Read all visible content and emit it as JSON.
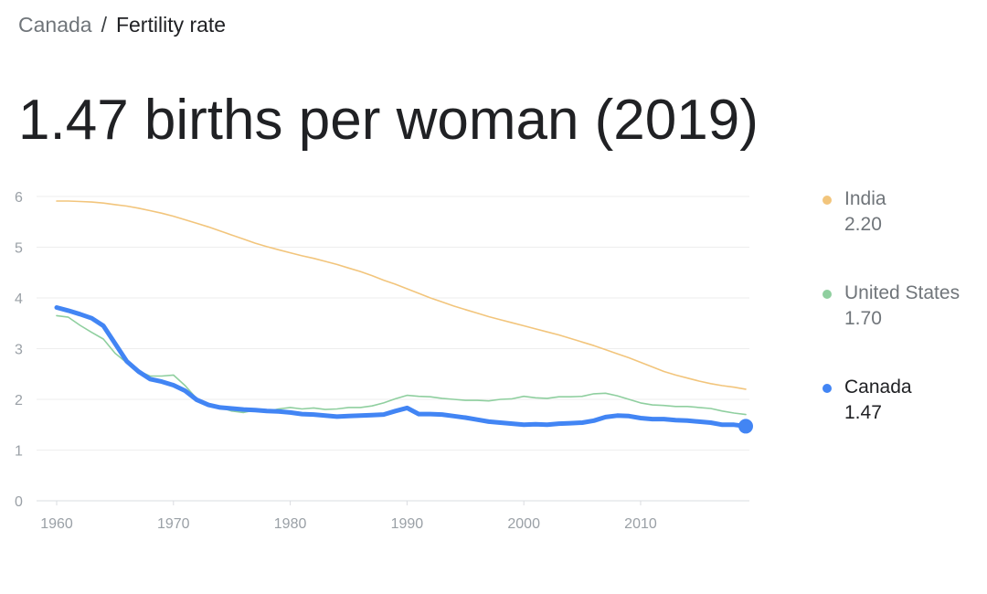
{
  "breadcrumb": {
    "parent": "Canada",
    "separator": "/",
    "current": "Fertility rate"
  },
  "headline": "1.47 births per woman (2019)",
  "colors": {
    "india": "#f2c57c",
    "united_states": "#8fcf9f",
    "canada": "#4285f4",
    "grid": "#eeeeee",
    "tick_label": "#9aa0a6"
  },
  "legend": [
    {
      "name": "India",
      "value": "2.20",
      "color": "#f2c57c",
      "active": false
    },
    {
      "name": "United States",
      "value": "1.70",
      "color": "#8fcf9f",
      "active": false
    },
    {
      "name": "Canada",
      "value": "1.47",
      "color": "#4285f4",
      "active": true
    }
  ],
  "chart_data": {
    "type": "line",
    "title": "",
    "xlabel": "",
    "ylabel": "",
    "xlim": [
      1960,
      2019
    ],
    "ylim": [
      0,
      6
    ],
    "grid": true,
    "legend_position": "right",
    "x_ticks": [
      "1960",
      "1970",
      "1980",
      "1990",
      "2000",
      "2010"
    ],
    "y_ticks": [
      "0",
      "1",
      "2",
      "3",
      "4",
      "5",
      "6"
    ],
    "x": [
      1960,
      1961,
      1962,
      1963,
      1964,
      1965,
      1966,
      1967,
      1968,
      1969,
      1970,
      1971,
      1972,
      1973,
      1974,
      1975,
      1976,
      1977,
      1978,
      1979,
      1980,
      1981,
      1982,
      1983,
      1984,
      1985,
      1986,
      1987,
      1988,
      1989,
      1990,
      1991,
      1992,
      1993,
      1994,
      1995,
      1996,
      1997,
      1998,
      1999,
      2000,
      2001,
      2002,
      2003,
      2004,
      2005,
      2006,
      2007,
      2008,
      2009,
      2010,
      2011,
      2012,
      2013,
      2014,
      2015,
      2016,
      2017,
      2018,
      2019
    ],
    "series": [
      {
        "name": "India",
        "color": "#f2c57c",
        "values": [
          5.91,
          5.91,
          5.9,
          5.89,
          5.87,
          5.84,
          5.81,
          5.77,
          5.72,
          5.67,
          5.61,
          5.54,
          5.47,
          5.4,
          5.32,
          5.24,
          5.16,
          5.08,
          5.01,
          4.95,
          4.89,
          4.83,
          4.78,
          4.72,
          4.66,
          4.59,
          4.52,
          4.44,
          4.35,
          4.27,
          4.18,
          4.09,
          4.0,
          3.92,
          3.84,
          3.77,
          3.7,
          3.63,
          3.57,
          3.51,
          3.45,
          3.39,
          3.33,
          3.27,
          3.2,
          3.13,
          3.06,
          2.98,
          2.9,
          2.82,
          2.73,
          2.64,
          2.55,
          2.48,
          2.42,
          2.36,
          2.31,
          2.27,
          2.24,
          2.2
        ]
      },
      {
        "name": "United States",
        "color": "#8fcf9f",
        "values": [
          3.65,
          3.62,
          3.46,
          3.32,
          3.19,
          2.91,
          2.72,
          2.56,
          2.46,
          2.46,
          2.48,
          2.27,
          2.01,
          1.88,
          1.84,
          1.77,
          1.74,
          1.79,
          1.76,
          1.81,
          1.84,
          1.81,
          1.83,
          1.8,
          1.81,
          1.84,
          1.84,
          1.87,
          1.93,
          2.01,
          2.08,
          2.06,
          2.05,
          2.02,
          2.0,
          1.98,
          1.98,
          1.97,
          2.0,
          2.01,
          2.06,
          2.03,
          2.02,
          2.05,
          2.05,
          2.06,
          2.11,
          2.12,
          2.07,
          2.0,
          1.93,
          1.89,
          1.88,
          1.86,
          1.86,
          1.84,
          1.82,
          1.77,
          1.73,
          1.7
        ]
      },
      {
        "name": "Canada",
        "color": "#4285f4",
        "values": [
          3.81,
          3.75,
          3.68,
          3.6,
          3.45,
          3.1,
          2.75,
          2.55,
          2.4,
          2.35,
          2.28,
          2.17,
          1.99,
          1.89,
          1.84,
          1.82,
          1.8,
          1.79,
          1.77,
          1.76,
          1.74,
          1.71,
          1.7,
          1.68,
          1.66,
          1.67,
          1.68,
          1.69,
          1.7,
          1.77,
          1.83,
          1.71,
          1.71,
          1.7,
          1.67,
          1.64,
          1.6,
          1.56,
          1.54,
          1.52,
          1.5,
          1.51,
          1.5,
          1.52,
          1.53,
          1.54,
          1.58,
          1.65,
          1.68,
          1.67,
          1.63,
          1.61,
          1.61,
          1.59,
          1.58,
          1.56,
          1.54,
          1.5,
          1.5,
          1.47
        ]
      }
    ]
  }
}
